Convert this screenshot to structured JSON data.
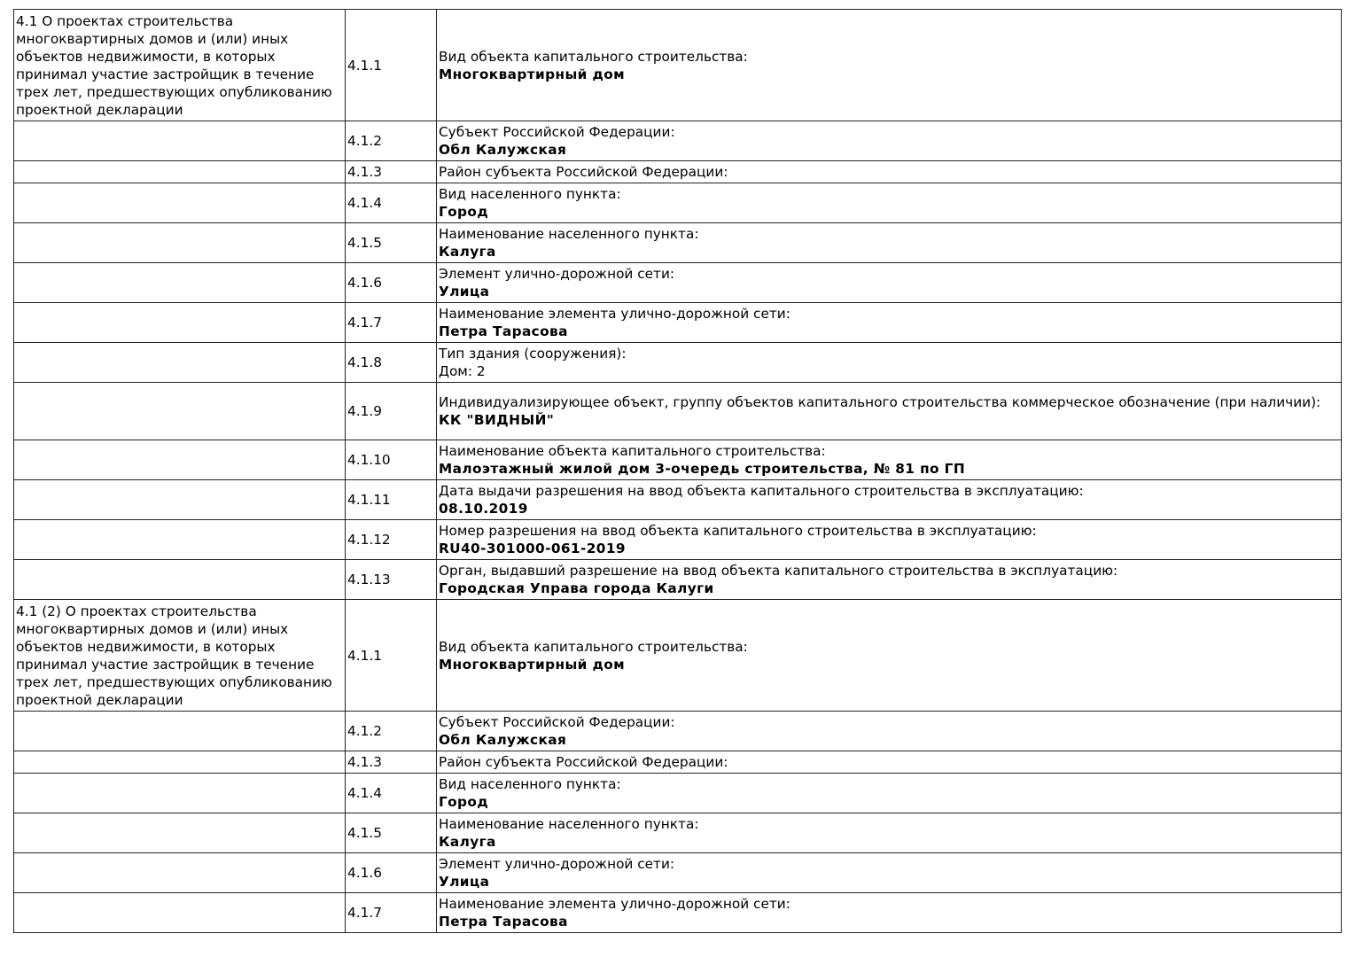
{
  "sections": [
    {
      "title": "4.1 О проектах строительства многоквартирных домов и (или) иных объектов недвижимости, в которых принимал участие застройщик в течение трех лет, предшествующих опубликованию проектной декларации",
      "rows": [
        {
          "code": "4.1.1",
          "label": "Вид объекта капитального строительства:",
          "value": "Многоквартирный дом",
          "bold": true
        },
        {
          "code": "4.1.2",
          "label": "Субъект Российской Федерации:",
          "value": "Обл Калужская",
          "bold": true
        },
        {
          "code": "4.1.3",
          "label": "Район субъекта Российской Федерации:",
          "value": "",
          "bold": true
        },
        {
          "code": "4.1.4",
          "label": "Вид населенного пункта:",
          "value": "Город",
          "bold": true
        },
        {
          "code": "4.1.5",
          "label": "Наименование населенного пункта:",
          "value": "Калуга",
          "bold": true
        },
        {
          "code": "4.1.6",
          "label": "Элемент улично-дорожной сети:",
          "value": "Улица",
          "bold": true
        },
        {
          "code": "4.1.7",
          "label": "Наименование элемента улично-дорожной сети:",
          "value": "Петра Тарасова",
          "bold": true
        },
        {
          "code": "4.1.8",
          "label": "Тип здания (сооружения):",
          "value": "Дом: 2",
          "bold": false
        },
        {
          "code": "4.1.9",
          "label": "Индивидуализирующее объект, группу объектов капитального строительства коммерческое обозначение (при наличии):",
          "value": "КК \"ВИДНЫЙ\"",
          "bold": true
        },
        {
          "code": "4.1.10",
          "label": "Наименование объекта капитального строительства:",
          "value": "Малоэтажный жилой дом 3-очередь строительства, № 81 по ГП",
          "bold": true
        },
        {
          "code": "4.1.11",
          "label": "Дата выдачи разрешения на ввод объекта капитального строительства в эксплуатацию:",
          "value": "08.10.2019",
          "bold": true
        },
        {
          "code": "4.1.12",
          "label": "Номер разрешения на ввод объекта капитального строительства в эксплуатацию:",
          "value": "RU40-301000-061-2019",
          "bold": true
        },
        {
          "code": "4.1.13",
          "label": "Орган, выдавший разрешение на ввод объекта капитального строительства в эксплуатацию:",
          "value": "Городская Управа города Калуги",
          "bold": true
        }
      ]
    },
    {
      "title": "4.1 (2) О проектах строительства многоквартирных домов и (или) иных объектов недвижимости, в которых принимал участие застройщик в течение трех лет, предшествующих опубликованию проектной декларации",
      "rows": [
        {
          "code": "4.1.1",
          "label": "Вид объекта капитального строительства:",
          "value": "Многоквартирный дом",
          "bold": true
        },
        {
          "code": "4.1.2",
          "label": "Субъект Российской Федерации:",
          "value": "Обл Калужская",
          "bold": true
        },
        {
          "code": "4.1.3",
          "label": "Район субъекта Российской Федерации:",
          "value": "",
          "bold": true
        },
        {
          "code": "4.1.4",
          "label": "Вид населенного пункта:",
          "value": "Город",
          "bold": true
        },
        {
          "code": "4.1.5",
          "label": "Наименование населенного пункта:",
          "value": "Калуга",
          "bold": true
        },
        {
          "code": "4.1.6",
          "label": "Элемент улично-дорожной сети:",
          "value": "Улица",
          "bold": true
        },
        {
          "code": "4.1.7",
          "label": "Наименование элемента улично-дорожной сети:",
          "value": "Петра Тарасова",
          "bold": true
        }
      ]
    }
  ]
}
